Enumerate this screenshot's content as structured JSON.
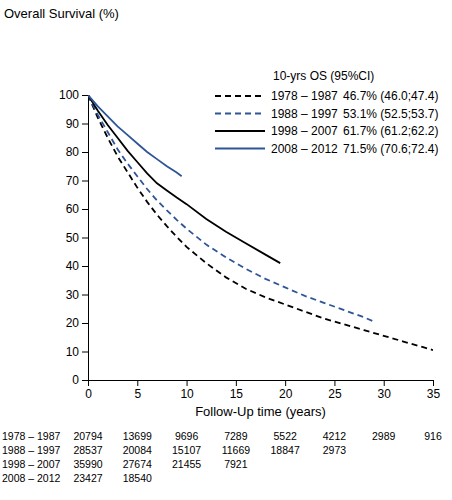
{
  "chart_data": {
    "type": "line",
    "y_label": "Overall Survival (%)",
    "x_label": "Follow-Up time (years)",
    "legend_title": "10-yrs OS (95%CI)",
    "legend": "top-right",
    "xlim": [
      0,
      35
    ],
    "ylim": [
      0,
      100
    ],
    "xticks": [
      0,
      5,
      10,
      15,
      20,
      25,
      30,
      35
    ],
    "yticks": [
      0,
      10,
      20,
      30,
      40,
      50,
      60,
      70,
      80,
      90,
      100
    ],
    "series": [
      {
        "name": "1978 – 1987",
        "color": "#000000",
        "line_style": "dashed",
        "os_label": "46.7% (46.0;47.4)",
        "x": [
          0,
          1,
          2,
          3,
          4,
          5,
          6,
          7,
          8,
          9,
          10,
          12,
          14,
          16,
          18,
          20,
          22,
          24,
          26,
          28,
          30,
          32,
          34,
          35
        ],
        "values": [
          100,
          92,
          85,
          78.5,
          73,
          67.5,
          62.5,
          58,
          54,
          50.2,
          46.7,
          41,
          36,
          32,
          29,
          26.5,
          24,
          21.5,
          19.5,
          17.5,
          15.5,
          13.5,
          11.5,
          10.5
        ]
      },
      {
        "name": "1988 – 1997",
        "color": "#2e5597",
        "line_style": "dashed",
        "os_label": "53.1% (52.5;53.7)",
        "x": [
          0,
          1,
          2,
          3,
          4,
          5,
          6,
          7,
          8,
          9,
          10,
          12,
          14,
          16,
          18,
          20,
          22,
          24,
          26,
          28,
          29
        ],
        "values": [
          100,
          93,
          87,
          81,
          76,
          71.5,
          67,
          63,
          59.5,
          56.2,
          53.1,
          47.5,
          43,
          39,
          35.5,
          32.5,
          29.5,
          27,
          24.5,
          22,
          20.5
        ]
      },
      {
        "name": "1998 – 2007",
        "color": "#000000",
        "line_style": "solid",
        "os_label": "61.7% (61.2;62.2)",
        "x": [
          0,
          1,
          2,
          3,
          4,
          5,
          6,
          7,
          8,
          9,
          10,
          12,
          14,
          16,
          18,
          19.5
        ],
        "values": [
          100,
          94.5,
          89.5,
          85,
          80.5,
          76.5,
          72.5,
          69,
          66.5,
          64,
          61.7,
          56.5,
          52,
          48,
          44,
          41
        ]
      },
      {
        "name": "2008 – 2012",
        "color": "#2e5597",
        "line_style": "solid",
        "os_label": "71.5% (70.6;72.4)",
        "x": [
          0,
          1,
          2,
          3,
          4,
          5,
          6,
          7,
          8,
          9,
          9.5
        ],
        "values": [
          100,
          96,
          92.5,
          89,
          86,
          83,
          80,
          77.5,
          75,
          72.8,
          71.5
        ]
      }
    ],
    "risk_table": {
      "rows": [
        {
          "label": "1978 – 1987",
          "values": [
            20794,
            13699,
            9696,
            7289,
            5522,
            4212,
            2989,
            916
          ]
        },
        {
          "label": "1988 – 1997",
          "values": [
            28537,
            20084,
            15107,
            11669,
            18847,
            2973
          ]
        },
        {
          "label": "1998 – 2007",
          "values": [
            35990,
            27674,
            21455,
            7921
          ]
        },
        {
          "label": "2008 – 2012",
          "values": [
            23427,
            18540
          ]
        }
      ]
    }
  }
}
